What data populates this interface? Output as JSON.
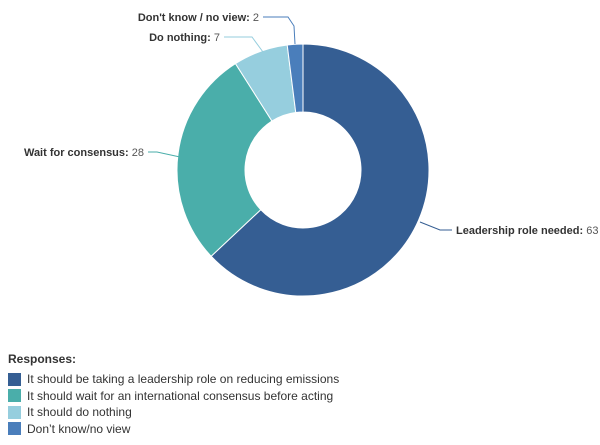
{
  "chart_data": {
    "type": "pie",
    "variant": "donut",
    "slices": [
      {
        "label": "Leadership role needed",
        "value": 63,
        "color": "#355e93",
        "legend": "It should be taking a leadership role on reducing emissions"
      },
      {
        "label": "Wait for consensus",
        "value": 28,
        "color": "#4aaeaa",
        "legend": "It should wait for an international consensus before acting"
      },
      {
        "label": "Do nothing",
        "value": 7,
        "color": "#96cede",
        "legend": "It should do nothing"
      },
      {
        "label": "Don't know / no view",
        "value": 2,
        "color": "#4a7ebb",
        "legend": "Don’t know/no view"
      }
    ],
    "legend_placement": "bottom-left"
  },
  "legend": {
    "title": "Responses:"
  }
}
